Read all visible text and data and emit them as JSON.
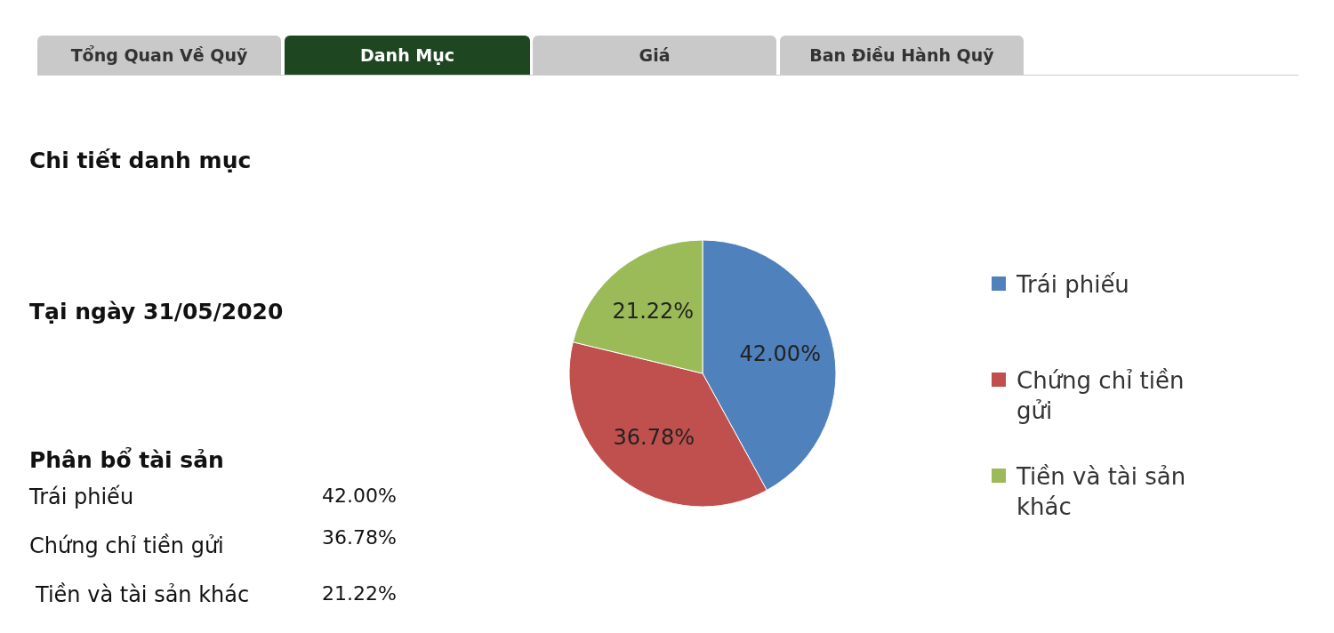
{
  "chart_data": {
    "type": "pie",
    "title": "Chi tiết danh mục",
    "subtitle": "Tại ngày 31/05/2020",
    "categories": [
      "Trái phiếu",
      "Chứng chỉ tiền gửi",
      "Tiền và tài sản khác"
    ],
    "values": [
      42.0,
      36.78,
      21.22
    ],
    "colors": [
      "#4f81bd",
      "#c0504d",
      "#9bbb59"
    ],
    "value_labels": [
      "42.00%",
      "36.78%",
      "21.22%"
    ],
    "legend": "right",
    "annotations": [
      "Tổng Quan Về Quỹ",
      "Danh Mục",
      "Giá",
      "Ban Điều Hành Quỹ",
      "Phân bổ tài sản"
    ]
  }
}
